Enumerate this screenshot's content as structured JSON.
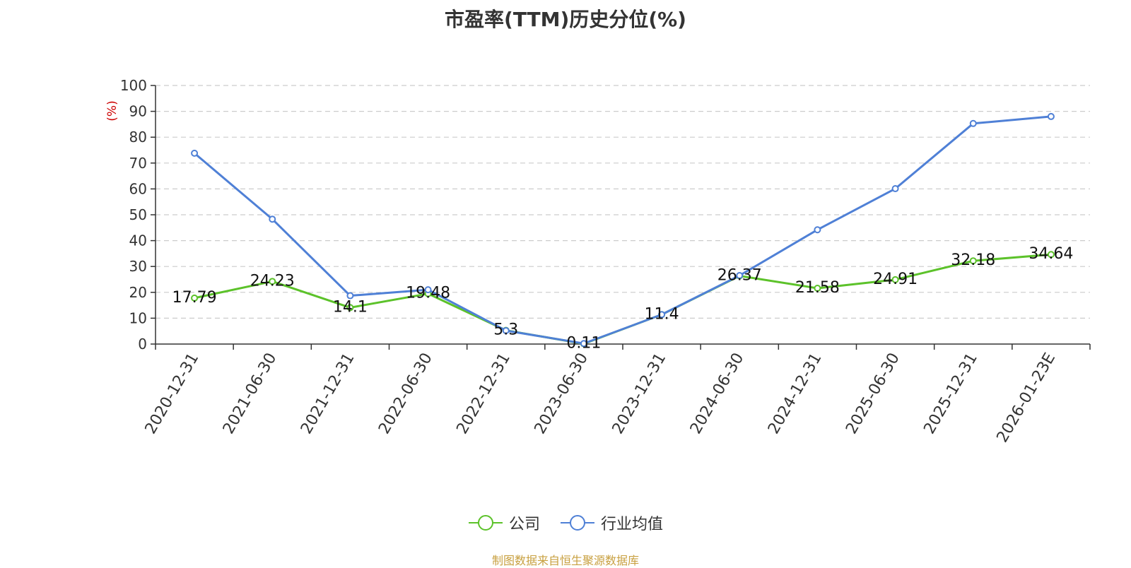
{
  "title": "市盈率(TTM)历史分位(%)",
  "source_note": "制图数据来自恒生聚源数据库",
  "colors": {
    "company": "#5cc22a",
    "industry": "#4f80d6",
    "unit_label": "#cc0000",
    "source": "#c8a040"
  },
  "chart_data": {
    "type": "line",
    "title": "市盈率(TTM)历史分位(%)",
    "ylabel": "(%)",
    "xlabel": "",
    "ylim": [
      0,
      100
    ],
    "yticks": [
      0,
      10,
      20,
      30,
      40,
      50,
      60,
      70,
      80,
      90,
      100
    ],
    "grid": true,
    "legend_position": "bottom-center",
    "categories": [
      "2020-12-31",
      "2021-06-30",
      "2021-12-31",
      "2022-06-30",
      "2022-12-31",
      "2023-06-30",
      "2023-12-31",
      "2024-06-30",
      "2024-12-31",
      "2025-06-30",
      "2025-12-31",
      "2026-01-23E"
    ],
    "series": [
      {
        "name": "公司",
        "color": "#5cc22a",
        "show_labels": true,
        "values": [
          17.79,
          24.23,
          14.1,
          19.48,
          5.3,
          0.11,
          11.4,
          26.37,
          21.58,
          24.91,
          32.18,
          34.64
        ],
        "labels": [
          "17.79",
          "24.23",
          "14.1",
          "19.48",
          "5.3",
          "0.11",
          "11.4",
          "26.37",
          "21.58",
          "24.91",
          "32.18",
          "34.64"
        ]
      },
      {
        "name": "行业均值",
        "color": "#4f80d6",
        "show_labels": false,
        "values": [
          73.8,
          48.3,
          18.7,
          21.0,
          5.2,
          0.2,
          11.4,
          26.5,
          44.2,
          60.1,
          85.3,
          88.0
        ]
      }
    ]
  },
  "legend": [
    {
      "label": "公司",
      "color": "#5cc22a"
    },
    {
      "label": "行业均值",
      "color": "#4f80d6"
    }
  ]
}
